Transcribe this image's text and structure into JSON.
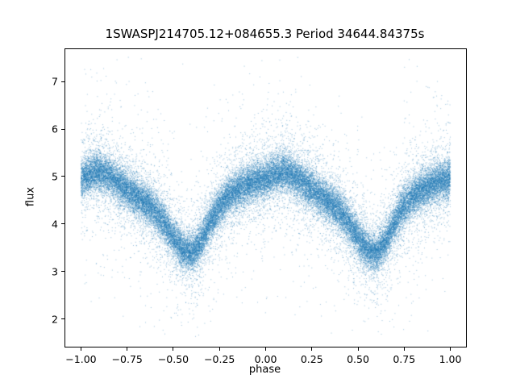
{
  "figure": {
    "background_color": "#ffffff",
    "axes_edge_color": "#000000"
  },
  "chart_data": {
    "type": "scatter",
    "title": "1SWASPJ214705.12+084655.3 Period 34644.84375s",
    "xlabel": "phase",
    "ylabel": "flux",
    "xlim": [
      -1.085,
      1.085
    ],
    "ylim": [
      1.42,
      7.68
    ],
    "xticks": [
      -1.0,
      -0.75,
      -0.5,
      -0.25,
      0.0,
      0.25,
      0.5,
      0.75,
      1.0
    ],
    "xtick_labels": [
      "−1.00",
      "−0.75",
      "−0.50",
      "−0.25",
      "0.00",
      "0.25",
      "0.50",
      "0.75",
      "1.00"
    ],
    "yticks": [
      2,
      3,
      4,
      5,
      6,
      7
    ],
    "ytick_labels": [
      "2",
      "3",
      "4",
      "5",
      "6",
      "7"
    ],
    "grid": false,
    "legend": null,
    "marker_color": "#1f77b4",
    "marker_alpha": 0.45,
    "n_points": 45000,
    "point_cloud_model": {
      "description": "Phase-folded eclipsing-binary light curve: dense point cloud around a periodic mean curve (period 1.0 in phase) with deep eclipse minima near phase -0.40 and +0.60 reaching flux ~3.4, broad maximum ~5.1 near phase +0.05, plus sparse outlier halo spanning flux ~1.7 to ~7.5",
      "phase_range": [
        -1.0,
        1.0
      ],
      "mean_curve": {
        "phase": [
          -1.0,
          -0.95,
          -0.9,
          -0.85,
          -0.8,
          -0.75,
          -0.7,
          -0.65,
          -0.6,
          -0.55,
          -0.5,
          -0.45,
          -0.4,
          -0.35,
          -0.3,
          -0.25,
          -0.2,
          -0.15,
          -0.1,
          -0.05,
          0.0,
          0.05,
          0.1,
          0.15,
          0.2,
          0.25,
          0.3,
          0.35,
          0.4,
          0.45,
          0.5,
          0.55,
          0.6,
          0.65,
          0.7,
          0.75,
          0.8,
          0.85,
          0.9,
          0.95,
          1.0
        ],
        "flux": [
          4.95,
          5.05,
          5.1,
          5.02,
          4.88,
          4.72,
          4.58,
          4.45,
          4.28,
          4.02,
          3.72,
          3.46,
          3.38,
          3.62,
          4.05,
          4.38,
          4.58,
          4.72,
          4.82,
          4.9,
          4.95,
          5.05,
          5.1,
          5.02,
          4.88,
          4.72,
          4.58,
          4.45,
          4.28,
          4.02,
          3.72,
          3.46,
          3.38,
          3.62,
          4.05,
          4.38,
          4.58,
          4.72,
          4.82,
          4.9,
          4.95
        ]
      },
      "noise_mixture": [
        {
          "fraction": 0.75,
          "sigma": 0.19
        },
        {
          "fraction": 0.2,
          "sigma": 0.45
        },
        {
          "fraction": 0.05,
          "sigma": 1.1
        }
      ],
      "flux_clip": [
        1.62,
        7.52
      ]
    }
  }
}
